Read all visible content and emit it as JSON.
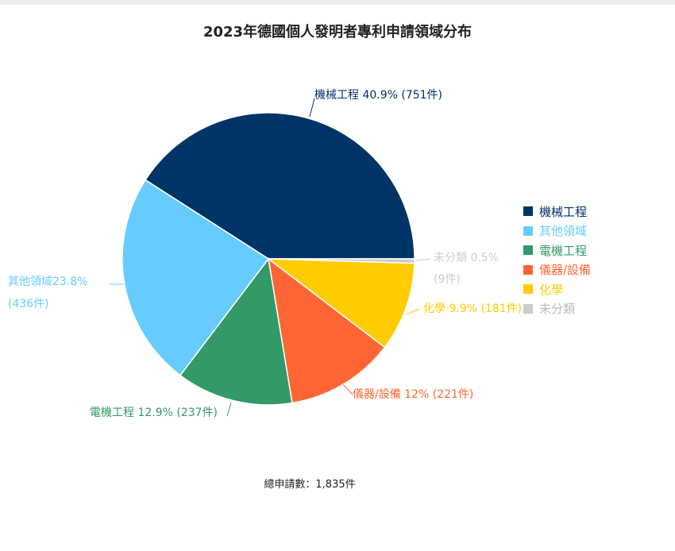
{
  "chart_data": {
    "type": "pie",
    "title": "2023年德國個人發明者專利申請領域分布",
    "total_note": "總申請數：1,835件",
    "slices": [
      {
        "name": "機械工程",
        "value": 751,
        "percent": 40.9,
        "color": "#003366",
        "label": "機械工程 40.9% (751件)"
      },
      {
        "name": "未分類",
        "value": 9,
        "percent": 0.5,
        "color": "#cccccc",
        "label": "未分類 0.5%|(9件)"
      },
      {
        "name": "化學",
        "value": 181,
        "percent": 9.9,
        "color": "#ffcc00",
        "label": "化學 9.9% (181件)"
      },
      {
        "name": "儀器/設備",
        "value": 221,
        "percent": 12.0,
        "color": "#ff6633",
        "label": "儀器/設備 12% (221件)"
      },
      {
        "name": "電機工程",
        "value": 237,
        "percent": 12.9,
        "color": "#339966",
        "label": "電機工程 12.9% (237件)"
      },
      {
        "name": "其他領域",
        "value": 436,
        "percent": 23.8,
        "color": "#66ccff",
        "label": "其他領域23.8%|(436件)"
      }
    ],
    "legend": [
      "機械工程",
      "其他領域",
      "電機工程",
      "儀器/設備",
      "化學",
      "未分類"
    ],
    "legend_position": "right"
  }
}
